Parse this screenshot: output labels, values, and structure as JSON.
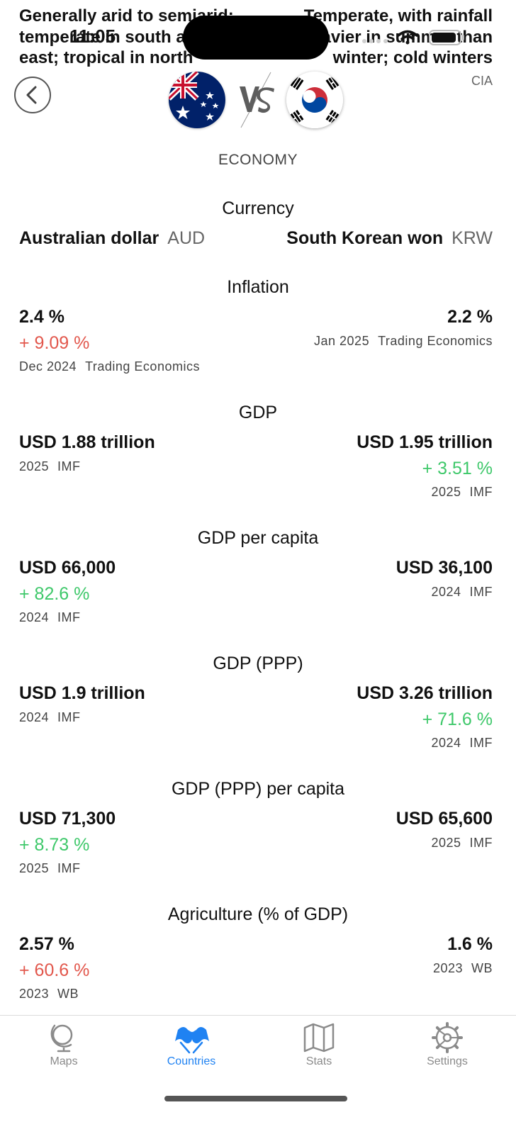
{
  "climate": {
    "left_lines": [
      "Generally arid to semiarid;",
      "temperate in south and",
      "east; tropical in north"
    ],
    "right_lines": [
      "Temperate, with rainfall",
      "heavier in summer than",
      "winter; cold winters"
    ],
    "source": "CIA"
  },
  "status_bar": {
    "time": "11:05"
  },
  "header": {
    "vs_label": "VS",
    "country_left_flag": "australia-flag",
    "country_right_flag": "south-korea-flag"
  },
  "section": {
    "title": "ECONOMY"
  },
  "currency": {
    "title": "Currency",
    "left": {
      "name": "Australian dollar",
      "code": "AUD"
    },
    "right": {
      "name": "South Korean won",
      "code": "KRW"
    }
  },
  "inflation": {
    "title": "Inflation",
    "left": {
      "value": "2.4 %",
      "delta": "+ 9.09 %",
      "year": "Dec 2024",
      "source": "Trading Economics"
    },
    "right": {
      "value": "2.2 %",
      "year": "Jan 2025",
      "source": "Trading Economics"
    }
  },
  "gdp": {
    "title": "GDP",
    "left": {
      "value": "USD 1.88 trillion",
      "year": "2025",
      "source": "IMF"
    },
    "right": {
      "value": "USD 1.95 trillion",
      "delta": "+ 3.51 %",
      "year": "2025",
      "source": "IMF"
    }
  },
  "gdp_per_capita": {
    "title": "GDP per capita",
    "left": {
      "value": "USD 66,000",
      "delta": "+ 82.6 %",
      "year": "2024",
      "source": "IMF"
    },
    "right": {
      "value": "USD 36,100",
      "year": "2024",
      "source": "IMF"
    }
  },
  "gdp_ppp": {
    "title": "GDP (PPP)",
    "left": {
      "value": "USD 1.9 trillion",
      "year": "2024",
      "source": "IMF"
    },
    "right": {
      "value": "USD 3.26 trillion",
      "delta": "+ 71.6 %",
      "year": "2024",
      "source": "IMF"
    }
  },
  "gdp_ppp_per_capita": {
    "title": "GDP (PPP) per capita",
    "left": {
      "value": "USD 71,300",
      "delta": "+ 8.73 %",
      "year": "2025",
      "source": "IMF"
    },
    "right": {
      "value": "USD 65,600",
      "year": "2025",
      "source": "IMF"
    }
  },
  "agriculture": {
    "title": "Agriculture (% of GDP)",
    "left": {
      "value": "2.57 %",
      "delta": "+ 60.6 %",
      "year": "2023",
      "source": "WB"
    },
    "right": {
      "value": "1.6 %",
      "year": "2023",
      "source": "WB"
    }
  },
  "tabs": [
    {
      "label": "Maps",
      "icon": "globe-icon"
    },
    {
      "label": "Countries",
      "icon": "flags-icon"
    },
    {
      "label": "Stats",
      "icon": "map-icon"
    },
    {
      "label": "Settings",
      "icon": "gear-icon"
    }
  ],
  "colors": {
    "accent": "#1f82f2",
    "positive": "#3ec86a",
    "negative": "#e2574c",
    "inactive_tab": "#8a8a8a"
  }
}
